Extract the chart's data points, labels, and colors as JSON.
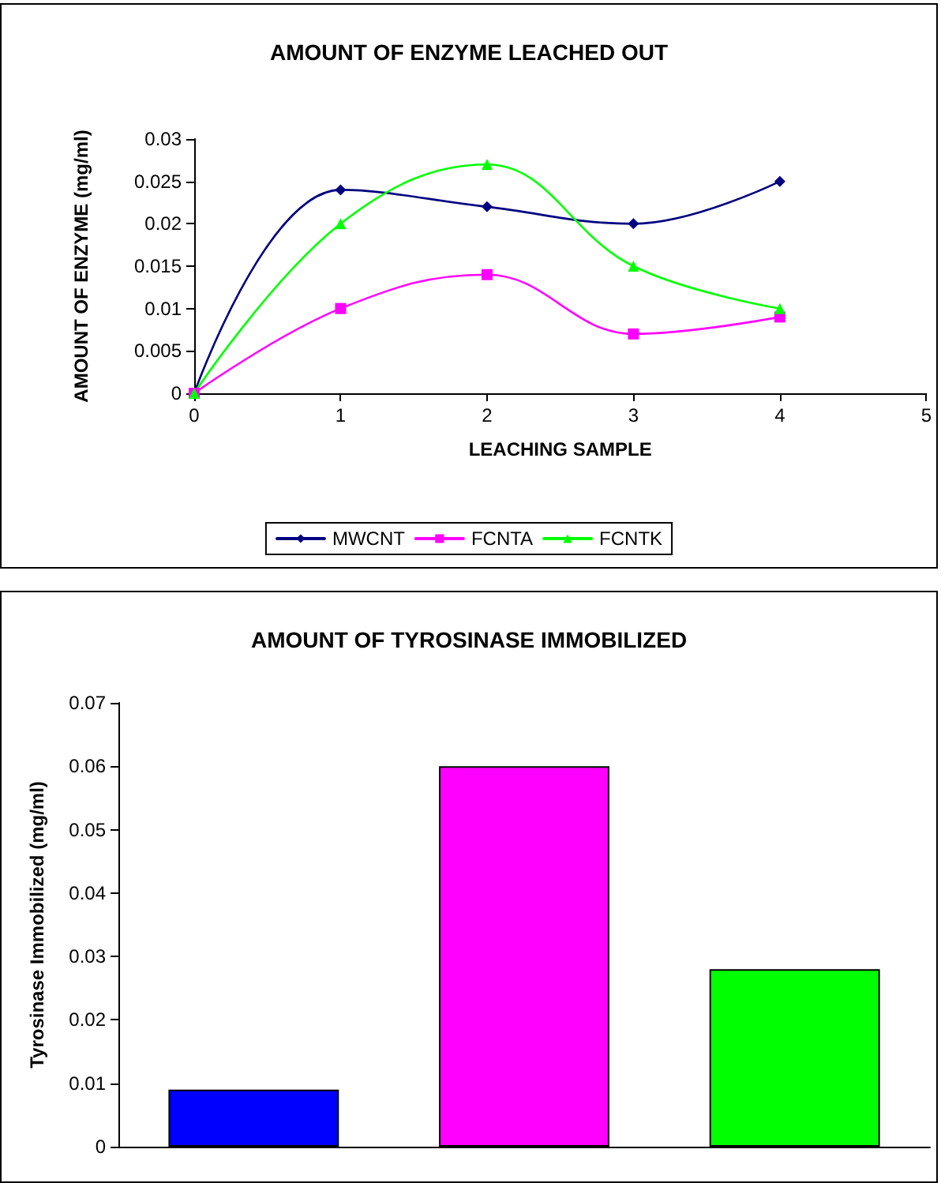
{
  "chart_data": [
    {
      "type": "line",
      "title": "AMOUNT OF ENZYME LEACHED OUT",
      "xlabel": "LEACHING SAMPLE",
      "ylabel": "AMOUNT OF ENZYME (mg/ml)",
      "x": [
        0,
        1,
        2,
        3,
        4
      ],
      "series": [
        {
          "name": "MWCNT",
          "color": "#000080",
          "marker": "diamond",
          "values": [
            0,
            0.024,
            0.022,
            0.02,
            0.025
          ]
        },
        {
          "name": "FCNTA",
          "color": "#ff00ff",
          "marker": "square",
          "values": [
            0,
            0.01,
            0.014,
            0.007,
            0.009
          ]
        },
        {
          "name": "FCNTK",
          "color": "#00ff00",
          "marker": "triangle",
          "values": [
            0,
            0.02,
            0.027,
            0.015,
            0.01
          ]
        }
      ],
      "xlim": [
        0,
        5
      ],
      "xticks": [
        0,
        1,
        2,
        3,
        4,
        5
      ],
      "ylim": [
        0,
        0.03
      ],
      "yticks": [
        0,
        0.005,
        0.01,
        0.015,
        0.02,
        0.025,
        0.03
      ],
      "grid": false,
      "legend": "bottom"
    },
    {
      "type": "bar",
      "title": "AMOUNT OF TYROSINASE IMMOBILIZED",
      "ylabel": "Tyrosinase Immobilized (mg/ml)",
      "categories": [
        null,
        null,
        null
      ],
      "values": [
        0.009,
        0.06,
        0.028
      ],
      "colors": [
        "#0000ff",
        "#ff00ff",
        "#00ff00"
      ],
      "ylim": [
        0,
        0.07
      ],
      "yticks": [
        0,
        0.01,
        0.02,
        0.03,
        0.04,
        0.05,
        0.06,
        0.07
      ],
      "grid": false,
      "legend": false
    }
  ]
}
